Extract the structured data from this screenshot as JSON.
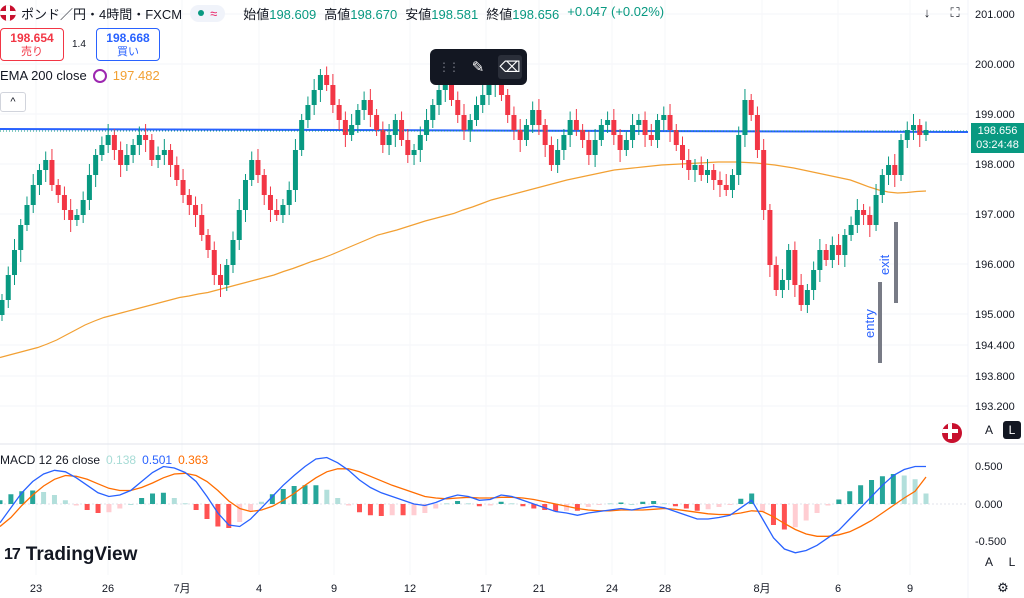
{
  "header": {
    "symbol": "ポンド／円・4時間・FXCM",
    "pill_icon": "waves-icon",
    "open_label": "始値",
    "open": "198.609",
    "high_label": "高値",
    "high": "198.670",
    "low_label": "安値",
    "low": "198.581",
    "close_label": "終値",
    "close": "198.656",
    "change": "+0.047 (+0.02%)"
  },
  "trade": {
    "sell_price": "198.654",
    "sell_label": "売り",
    "spread": "1.4",
    "buy_price": "198.668",
    "buy_label": "買い"
  },
  "ema": {
    "label": "EMA 200 close",
    "value": "197.482"
  },
  "macd": {
    "label": "MACD 12 26 close",
    "hist": "0.138",
    "macd": "0.501",
    "signal": "0.363"
  },
  "drawing_toolbar": {
    "tools": [
      "grip-icon",
      "brush-icon",
      "eraser-icon"
    ]
  },
  "toolbar": {
    "collapse": "^",
    "down": "↓",
    "fullscreen": "⛶"
  },
  "price_label": {
    "price": "198.656",
    "countdown": "03:24:48"
  },
  "axis_buttons": {
    "auto": "A",
    "log": "L"
  },
  "brand": {
    "name": "TradingView",
    "mark": "17"
  },
  "colors": {
    "up": "#089981",
    "down": "#f23645",
    "ema": "#f2a033",
    "trendline": "#2962ff",
    "macd": "#2962ff",
    "signal": "#ff6d00",
    "marker": "#787b86"
  },
  "chart_data": {
    "type": "candlestick",
    "symbol": "GBP/JPY 4H",
    "price_axis_ticks": [
      "201.000",
      "200.000",
      "199.000",
      "198.000",
      "197.000",
      "196.000",
      "195.000",
      "194.400",
      "193.800",
      "193.200"
    ],
    "time_axis_ticks": [
      "23",
      "26",
      "7月",
      "4",
      "9",
      "12",
      "17",
      "21",
      "24",
      "28",
      "8月",
      "6",
      "9"
    ],
    "macd_axis_ticks": [
      "0.500",
      "0.000",
      "-0.500"
    ],
    "annotations": [
      {
        "text": "entry"
      },
      {
        "text": "exit"
      }
    ],
    "trendline_level": 198.72,
    "closes": [
      195.3,
      195.8,
      196.3,
      196.8,
      197.2,
      197.6,
      197.9,
      198.1,
      197.6,
      197.4,
      197.1,
      196.9,
      197.0,
      197.3,
      197.8,
      198.2,
      198.4,
      198.6,
      198.3,
      198.0,
      198.2,
      198.4,
      198.6,
      198.5,
      198.1,
      198.2,
      198.3,
      198.0,
      197.7,
      197.4,
      197.2,
      197.0,
      196.6,
      196.3,
      195.8,
      195.6,
      196.0,
      196.5,
      197.1,
      197.7,
      198.1,
      197.8,
      197.4,
      197.1,
      197.0,
      197.2,
      197.5,
      198.3,
      198.9,
      199.2,
      199.5,
      199.8,
      199.6,
      199.2,
      198.9,
      198.6,
      198.8,
      199.1,
      199.3,
      199.0,
      198.7,
      198.4,
      198.6,
      198.9,
      198.5,
      198.2,
      198.3,
      198.6,
      198.9,
      199.2,
      199.5,
      199.6,
      199.3,
      199.0,
      198.7,
      198.9,
      199.2,
      199.4,
      199.6,
      199.7,
      199.4,
      199.0,
      198.7,
      198.5,
      198.8,
      199.1,
      198.8,
      198.4,
      198.0,
      198.3,
      198.6,
      198.9,
      198.7,
      198.5,
      198.2,
      198.5,
      198.8,
      198.9,
      198.6,
      198.3,
      198.5,
      198.8,
      198.9,
      198.6,
      198.5,
      198.9,
      199.0,
      198.7,
      198.4,
      198.1,
      197.9,
      198.0,
      197.8,
      197.9,
      197.7,
      197.6,
      197.5,
      197.8,
      198.6,
      199.3,
      199.0,
      198.3,
      197.1,
      196.0,
      195.5,
      195.7,
      196.3,
      195.6,
      195.2,
      195.5,
      195.9,
      196.3,
      196.1,
      196.4,
      196.2,
      196.6,
      196.8,
      197.1,
      197.0,
      196.8,
      197.4,
      197.8,
      198.0,
      197.8,
      198.5,
      198.7,
      198.8,
      198.6,
      198.7
    ],
    "ema200": [
      194.15,
      194.2,
      194.25,
      194.3,
      194.35,
      194.42,
      194.5,
      194.6,
      194.7,
      194.8,
      194.88,
      194.95,
      195.0,
      195.05,
      195.1,
      195.15,
      195.2,
      195.25,
      195.3,
      195.35,
      195.38,
      195.42,
      195.45,
      195.5,
      195.55,
      195.6,
      195.65,
      195.7,
      195.75,
      195.8,
      195.87,
      195.93,
      196.0,
      196.07,
      196.13,
      196.2,
      196.28,
      196.36,
      196.44,
      196.52,
      196.6,
      196.65,
      196.7,
      196.76,
      196.82,
      196.88,
      196.93,
      196.98,
      197.03,
      197.1,
      197.16,
      197.23,
      197.3,
      197.35,
      197.4,
      197.45,
      197.5,
      197.55,
      197.6,
      197.65,
      197.7,
      197.74,
      197.78,
      197.82,
      197.86,
      197.9,
      197.92,
      197.94,
      197.96,
      197.98,
      198.0,
      198.01,
      198.02,
      198.03,
      198.04,
      198.05,
      198.06,
      198.06,
      198.06,
      198.05,
      198.04,
      198.02,
      198.0,
      197.97,
      197.94,
      197.9,
      197.86,
      197.82,
      197.78,
      197.74,
      197.7,
      197.63,
      197.56,
      197.5,
      197.46,
      197.44,
      197.45,
      197.47,
      197.48
    ],
    "macd_line": [
      -0.25,
      -0.05,
      0.15,
      0.3,
      0.4,
      0.45,
      0.43,
      0.35,
      0.25,
      0.15,
      0.1,
      0.12,
      0.18,
      0.3,
      0.42,
      0.5,
      0.48,
      0.42,
      0.3,
      0.1,
      -0.12,
      -0.28,
      -0.3,
      -0.2,
      -0.05,
      0.1,
      0.25,
      0.38,
      0.5,
      0.6,
      0.62,
      0.55,
      0.45,
      0.32,
      0.22,
      0.15,
      0.1,
      0.05,
      0.0,
      -0.02,
      0.02,
      0.08,
      0.12,
      0.1,
      0.05,
      0.06,
      0.12,
      0.1,
      0.05,
      0.0,
      -0.05,
      -0.1,
      -0.12,
      -0.15,
      -0.12,
      -0.1,
      -0.08,
      -0.06,
      -0.08,
      -0.05,
      -0.03,
      -0.05,
      -0.1,
      -0.15,
      -0.2,
      -0.2,
      -0.18,
      -0.15,
      -0.05,
      0.05,
      -0.2,
      -0.45,
      -0.6,
      -0.65,
      -0.62,
      -0.55,
      -0.45,
      -0.35,
      -0.2,
      -0.05,
      0.1,
      0.25,
      0.38,
      0.46,
      0.5,
      0.5
    ],
    "signal_line": [
      -0.3,
      -0.18,
      -0.02,
      0.12,
      0.24,
      0.33,
      0.38,
      0.37,
      0.33,
      0.27,
      0.21,
      0.18,
      0.18,
      0.22,
      0.28,
      0.35,
      0.4,
      0.41,
      0.38,
      0.3,
      0.18,
      0.04,
      -0.06,
      -0.1,
      -0.08,
      -0.03,
      0.05,
      0.14,
      0.25,
      0.35,
      0.43,
      0.47,
      0.47,
      0.43,
      0.37,
      0.31,
      0.25,
      0.2,
      0.15,
      0.1,
      0.08,
      0.07,
      0.08,
      0.09,
      0.08,
      0.08,
      0.09,
      0.09,
      0.08,
      0.06,
      0.03,
      0.0,
      -0.03,
      -0.06,
      -0.08,
      -0.09,
      -0.09,
      -0.08,
      -0.08,
      -0.08,
      -0.07,
      -0.06,
      -0.07,
      -0.09,
      -0.11,
      -0.13,
      -0.14,
      -0.14,
      -0.12,
      -0.09,
      -0.1,
      -0.17,
      -0.26,
      -0.34,
      -0.4,
      -0.43,
      -0.43,
      -0.41,
      -0.37,
      -0.3,
      -0.22,
      -0.12,
      -0.02,
      0.08,
      0.17,
      0.36
    ]
  }
}
